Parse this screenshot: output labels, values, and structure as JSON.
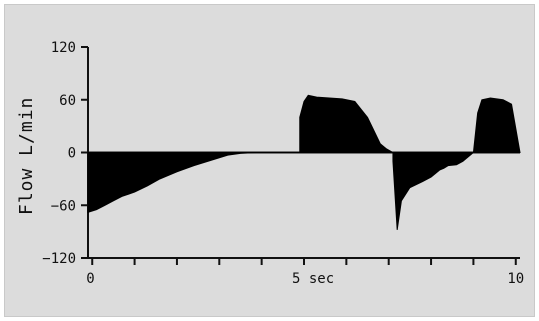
{
  "chart_data": {
    "type": "area",
    "title": "",
    "ylabel": "Flow L/min",
    "xlabel": "sec",
    "x_tick_labels": [
      "0",
      "5 sec",
      "10"
    ],
    "x_ticks": [
      0,
      5,
      10
    ],
    "y_ticks": [
      120,
      60,
      0,
      -60,
      -120
    ],
    "y_tick_labels": [
      "120",
      "60",
      "0",
      "−60",
      "−120"
    ],
    "xlim": [
      -0.1,
      10.1
    ],
    "ylim": [
      -120,
      120
    ],
    "grid": false,
    "series": [
      {
        "x": [
          -0.1,
          -0.1,
          0.1,
          0.3,
          0.5,
          0.7,
          1.0,
          1.3,
          1.6,
          2.0,
          2.4,
          2.8,
          3.0,
          3.2,
          3.5,
          3.9,
          4.3,
          4.7,
          4.9,
          4.9,
          5.0,
          5.1,
          5.3,
          5.6,
          5.9,
          6.2,
          6.5,
          6.8,
          6.95,
          7.1,
          7.1,
          7.2,
          7.3,
          7.5,
          7.8,
          8.0,
          8.1,
          8.2,
          8.3,
          8.4,
          8.6,
          8.75,
          9.0,
          9.1,
          9.2,
          9.4,
          9.7,
          9.9,
          10.1
        ],
        "y": [
          0,
          -68,
          -65,
          -60,
          -55,
          -50,
          -45,
          -38,
          -30,
          -22,
          -15,
          -9,
          -6,
          -3,
          -1,
          0,
          0,
          0,
          0,
          40,
          58,
          65,
          63,
          62,
          61,
          58,
          40,
          10,
          4,
          0,
          -10,
          -88,
          -55,
          -40,
          -33,
          -28,
          -24,
          -20,
          -18,
          -15,
          -14,
          -10,
          0,
          45,
          60,
          62,
          60,
          55,
          0
        ]
      }
    ]
  }
}
